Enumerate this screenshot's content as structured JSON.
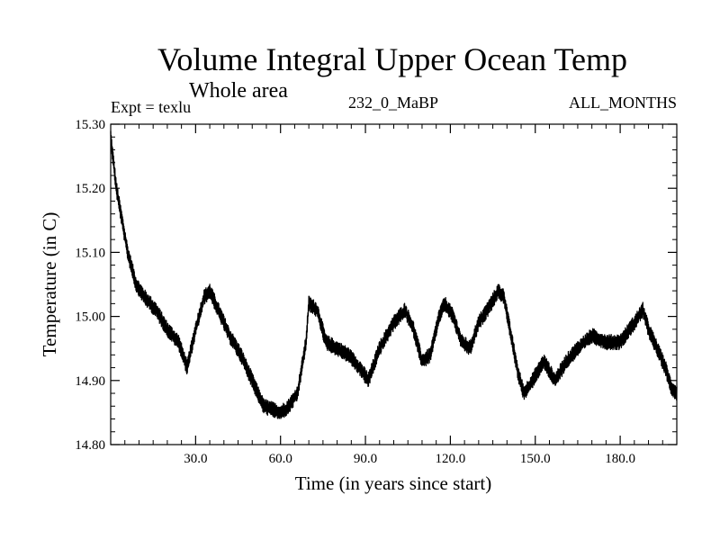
{
  "chart_data": {
    "type": "line",
    "title": "Volume Integral Upper Ocean Temp",
    "subtitle": "Whole area",
    "experiment_label": "Expt = texlu",
    "run_label": "232_0_MaBP",
    "period_label": "ALL_MONTHS",
    "xlabel": "Time (in years since start)",
    "ylabel": "Temperature (in C)",
    "xlim": [
      0,
      200
    ],
    "ylim": [
      14.8,
      15.3
    ],
    "x_ticks": [
      30,
      60,
      90,
      120,
      150,
      180
    ],
    "x_tick_labels": [
      "30.0",
      "60.0",
      "90.0",
      "120.0",
      "150.0",
      "180.0"
    ],
    "y_ticks": [
      14.8,
      14.9,
      15.0,
      15.1,
      15.2,
      15.3
    ],
    "y_tick_labels": [
      "14.80",
      "14.90",
      "15.00",
      "15.10",
      "15.20",
      "15.30"
    ],
    "series": [
      {
        "name": "texlu",
        "noise_amplitude": 0.012,
        "trend_x": [
          0,
          1,
          2,
          4,
          6,
          9,
          12,
          16,
          20,
          24,
          27,
          30,
          33,
          35,
          38,
          42,
          46,
          50,
          54,
          57,
          60,
          63,
          66,
          69,
          70,
          73,
          76,
          80,
          84,
          88,
          91,
          95,
          100,
          104,
          107,
          110,
          113,
          116,
          118,
          121,
          124,
          127,
          130,
          133,
          137,
          139,
          141,
          144,
          146,
          149,
          153,
          157,
          161,
          165,
          170,
          175,
          180,
          185,
          188,
          190,
          193,
          196,
          198,
          200
        ],
        "trend_y": [
          15.28,
          15.24,
          15.2,
          15.15,
          15.1,
          15.05,
          15.03,
          15.01,
          14.98,
          14.96,
          14.92,
          14.98,
          15.03,
          15.04,
          15.01,
          14.97,
          14.94,
          14.9,
          14.86,
          14.855,
          14.85,
          14.86,
          14.88,
          14.96,
          15.02,
          15.01,
          14.96,
          14.95,
          14.94,
          14.92,
          14.9,
          14.95,
          14.99,
          15.01,
          14.98,
          14.93,
          14.94,
          15.0,
          15.02,
          15.0,
          14.96,
          14.95,
          14.99,
          15.01,
          15.04,
          15.03,
          14.98,
          14.91,
          14.88,
          14.9,
          14.93,
          14.9,
          14.93,
          14.95,
          14.97,
          14.96,
          14.96,
          14.99,
          15.01,
          14.98,
          14.95,
          14.92,
          14.89,
          14.88
        ]
      }
    ]
  }
}
